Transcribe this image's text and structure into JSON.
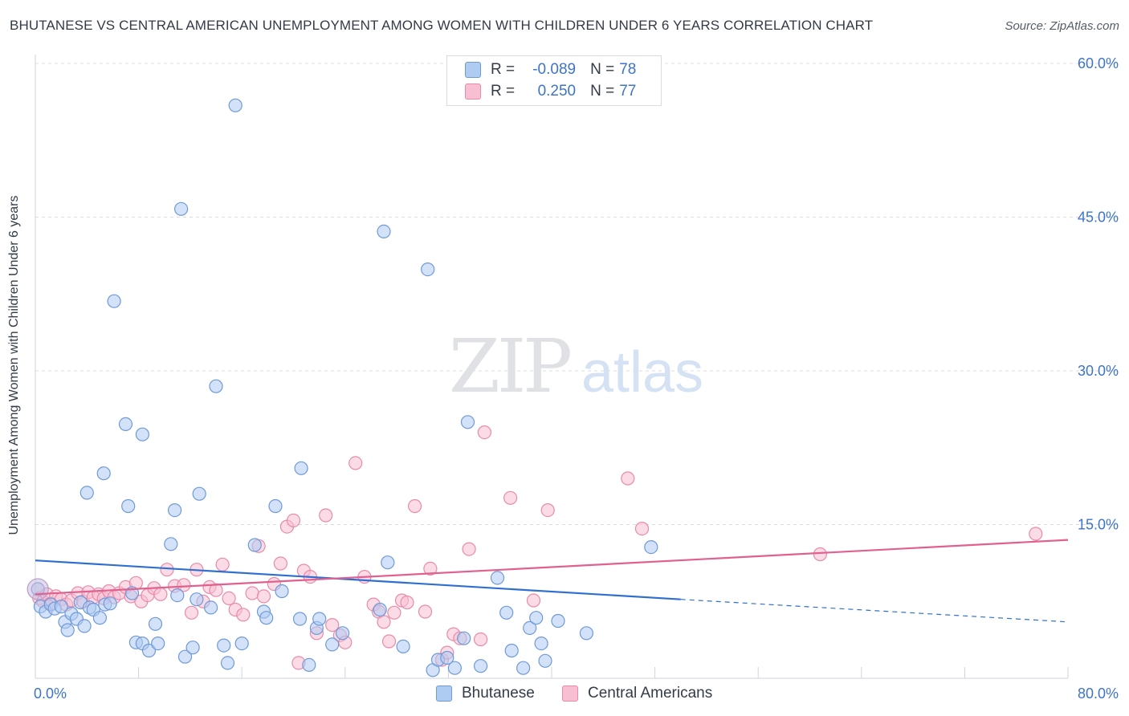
{
  "title": "BHUTANESE VS CENTRAL AMERICAN UNEMPLOYMENT AMONG WOMEN WITH CHILDREN UNDER 6 YEARS CORRELATION CHART",
  "source": "Source: ZipAtlas.com",
  "watermark": {
    "zip": "ZIP",
    "atlas": "atlas"
  },
  "legend": {
    "rows": [
      {
        "r_label": "R =",
        "r_value": "-0.089",
        "n_label": "N =",
        "n_value": "78",
        "color": "#a9c8f2"
      },
      {
        "r_label": "R =",
        "r_value": "0.250",
        "n_label": "N =",
        "n_value": "77",
        "color": "#f5b8cc"
      }
    ]
  },
  "colors": {
    "blue_fill": "#aecbf2",
    "blue_stroke": "#6f9ad8",
    "blue_line": "#2f6fd0",
    "pink_fill": "#f7bfd1",
    "pink_stroke": "#e98aaa",
    "pink_line": "#e0608e",
    "tick_text": "#3d74c9",
    "grid": "#d9dde3"
  },
  "chart_data": {
    "type": "scatter",
    "xlabel": "",
    "ylabel": "Unemployment Among Women with Children Under 6 years",
    "xlim": [
      0,
      80
    ],
    "ylim": [
      0,
      60
    ],
    "x_tick_labels": [
      "0.0%",
      "80.0%"
    ],
    "y_tick_values": [
      15,
      30,
      45,
      60
    ],
    "y_tick_labels": [
      "15.0%",
      "30.0%",
      "45.0%",
      "60.0%"
    ],
    "grid": true,
    "legend_position": "top-center",
    "series": [
      {
        "name": "Bhutanese",
        "color": "#aecbf2",
        "trend": {
          "x": [
            0,
            50
          ],
          "y": [
            11.5,
            7.7
          ],
          "dashed_to": [
            80,
            5.5
          ]
        },
        "points": [
          [
            0.4,
            7.0
          ],
          [
            0.8,
            6.5
          ],
          [
            1.2,
            7.2
          ],
          [
            1.5,
            6.8
          ],
          [
            2.0,
            7.0
          ],
          [
            2.3,
            5.5
          ],
          [
            2.5,
            4.7
          ],
          [
            2.8,
            6.3
          ],
          [
            3.2,
            5.8
          ],
          [
            3.5,
            7.4
          ],
          [
            3.8,
            5.1
          ],
          [
            4.2,
            6.9
          ],
          [
            4.5,
            6.7
          ],
          [
            5.0,
            5.9
          ],
          [
            5.4,
            7.2
          ],
          [
            5.8,
            7.3
          ],
          [
            4.0,
            18.1
          ],
          [
            5.3,
            20.0
          ],
          [
            6.1,
            36.8
          ],
          [
            7.0,
            24.8
          ],
          [
            7.2,
            16.8
          ],
          [
            8.3,
            23.8
          ],
          [
            7.5,
            8.3
          ],
          [
            7.8,
            3.5
          ],
          [
            8.3,
            3.4
          ],
          [
            8.8,
            2.7
          ],
          [
            9.3,
            5.3
          ],
          [
            9.5,
            3.4
          ],
          [
            10.5,
            13.1
          ],
          [
            10.8,
            16.4
          ],
          [
            11.0,
            8.1
          ],
          [
            11.3,
            45.8
          ],
          [
            11.6,
            2.1
          ],
          [
            12.2,
            3.0
          ],
          [
            12.5,
            7.7
          ],
          [
            12.7,
            18.0
          ],
          [
            13.6,
            6.9
          ],
          [
            14.0,
            28.5
          ],
          [
            14.6,
            3.2
          ],
          [
            14.9,
            1.5
          ],
          [
            15.5,
            55.9
          ],
          [
            16.0,
            3.4
          ],
          [
            17.0,
            13.0
          ],
          [
            17.7,
            6.5
          ],
          [
            17.9,
            5.9
          ],
          [
            18.6,
            16.8
          ],
          [
            19.1,
            8.5
          ],
          [
            20.5,
            5.8
          ],
          [
            20.6,
            20.5
          ],
          [
            21.2,
            1.3
          ],
          [
            21.8,
            4.9
          ],
          [
            22.0,
            5.8
          ],
          [
            23.0,
            3.3
          ],
          [
            23.8,
            4.4
          ],
          [
            26.7,
            6.7
          ],
          [
            27.0,
            43.6
          ],
          [
            27.3,
            11.3
          ],
          [
            28.5,
            3.1
          ],
          [
            30.4,
            39.9
          ],
          [
            30.8,
            0.8
          ],
          [
            31.2,
            1.8
          ],
          [
            31.9,
            2.0
          ],
          [
            32.5,
            1.0
          ],
          [
            33.2,
            3.9
          ],
          [
            33.5,
            25.0
          ],
          [
            34.5,
            1.2
          ],
          [
            35.8,
            9.8
          ],
          [
            36.5,
            6.4
          ],
          [
            36.9,
            2.7
          ],
          [
            37.8,
            1.0
          ],
          [
            38.3,
            4.9
          ],
          [
            38.8,
            5.9
          ],
          [
            39.2,
            3.4
          ],
          [
            39.5,
            1.7
          ],
          [
            40.5,
            5.6
          ],
          [
            42.7,
            4.4
          ],
          [
            47.7,
            12.8
          ],
          [
            0.2,
            8.7
          ]
        ]
      },
      {
        "name": "Central Americans",
        "color": "#f7bfd1",
        "trend": {
          "x": [
            0,
            80
          ],
          "y": [
            8.2,
            13.5
          ]
        },
        "points": [
          [
            0.3,
            7.8
          ],
          [
            0.6,
            7.5
          ],
          [
            0.9,
            8.2
          ],
          [
            1.2,
            7.3
          ],
          [
            1.6,
            8.0
          ],
          [
            2.0,
            7.7
          ],
          [
            2.4,
            7.2
          ],
          [
            2.8,
            7.6
          ],
          [
            3.3,
            8.3
          ],
          [
            3.7,
            7.5
          ],
          [
            4.1,
            8.4
          ],
          [
            4.5,
            7.9
          ],
          [
            4.9,
            8.2
          ],
          [
            5.3,
            7.8
          ],
          [
            5.7,
            8.5
          ],
          [
            6.1,
            7.9
          ],
          [
            6.5,
            8.3
          ],
          [
            7.0,
            8.9
          ],
          [
            7.4,
            8.0
          ],
          [
            7.8,
            9.3
          ],
          [
            8.2,
            7.5
          ],
          [
            8.7,
            8.1
          ],
          [
            9.2,
            8.8
          ],
          [
            9.7,
            8.2
          ],
          [
            10.2,
            10.6
          ],
          [
            10.8,
            9.0
          ],
          [
            11.5,
            9.1
          ],
          [
            12.1,
            6.4
          ],
          [
            12.5,
            10.6
          ],
          [
            13.0,
            7.5
          ],
          [
            13.5,
            8.9
          ],
          [
            14.0,
            8.6
          ],
          [
            14.5,
            11.1
          ],
          [
            15.0,
            7.8
          ],
          [
            15.5,
            6.7
          ],
          [
            16.1,
            6.2
          ],
          [
            16.8,
            8.3
          ],
          [
            17.3,
            12.9
          ],
          [
            17.7,
            8.0
          ],
          [
            18.5,
            9.2
          ],
          [
            19.0,
            11.2
          ],
          [
            19.5,
            14.8
          ],
          [
            20.0,
            15.4
          ],
          [
            20.4,
            1.5
          ],
          [
            20.8,
            10.5
          ],
          [
            21.3,
            9.9
          ],
          [
            21.8,
            4.4
          ],
          [
            22.5,
            15.9
          ],
          [
            23.0,
            5.2
          ],
          [
            23.6,
            4.2
          ],
          [
            24.0,
            3.5
          ],
          [
            24.8,
            21.0
          ],
          [
            25.5,
            9.9
          ],
          [
            26.2,
            7.2
          ],
          [
            26.6,
            6.5
          ],
          [
            27.0,
            5.5
          ],
          [
            27.4,
            3.6
          ],
          [
            27.8,
            6.4
          ],
          [
            28.4,
            7.6
          ],
          [
            28.8,
            7.4
          ],
          [
            29.4,
            16.8
          ],
          [
            30.2,
            6.5
          ],
          [
            30.6,
            10.7
          ],
          [
            31.5,
            1.8
          ],
          [
            31.9,
            2.5
          ],
          [
            32.4,
            4.3
          ],
          [
            32.9,
            3.9
          ],
          [
            33.6,
            12.6
          ],
          [
            34.5,
            3.8
          ],
          [
            34.8,
            24.0
          ],
          [
            36.8,
            17.6
          ],
          [
            38.6,
            7.6
          ],
          [
            39.7,
            16.4
          ],
          [
            45.9,
            19.5
          ],
          [
            47.0,
            14.6
          ],
          [
            60.8,
            12.1
          ],
          [
            77.5,
            14.1
          ]
        ]
      }
    ]
  }
}
